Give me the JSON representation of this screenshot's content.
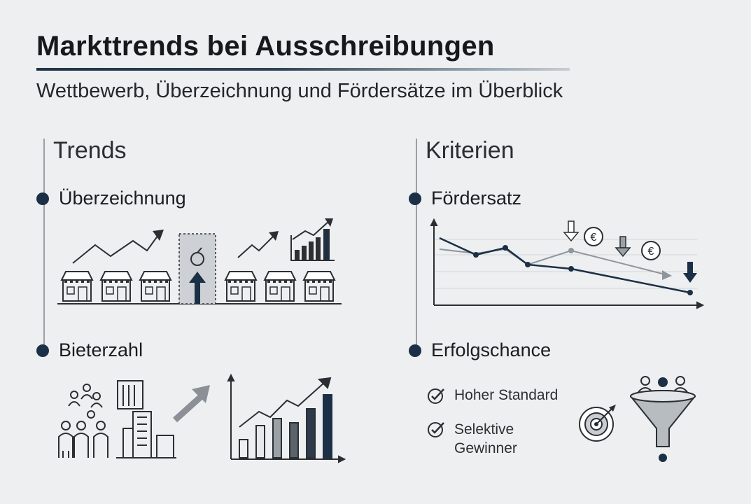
{
  "header": {
    "title": "Markttrends bei Ausschreibungen",
    "subtitle": "Wettbewerb, Überzeichnung und Fördersätze im Überblick"
  },
  "left": {
    "heading": "Trends",
    "items": [
      {
        "label": "Überzeichnung"
      },
      {
        "label": "Bieterzahl"
      }
    ]
  },
  "right": {
    "heading": "Kriterien",
    "items": [
      {
        "label": "Fördersatz"
      },
      {
        "label": "Erfolgschance"
      }
    ],
    "checklist": [
      {
        "text_line1": "Hoher Standard",
        "text_line2": ""
      },
      {
        "text_line1": "Selektive",
        "text_line2": "Gewinner"
      }
    ]
  },
  "icons": {
    "euro_symbol": "€"
  },
  "colors": {
    "navy": "#1b3046",
    "gray_line": "#8e969c",
    "background": "#eeeff0"
  }
}
